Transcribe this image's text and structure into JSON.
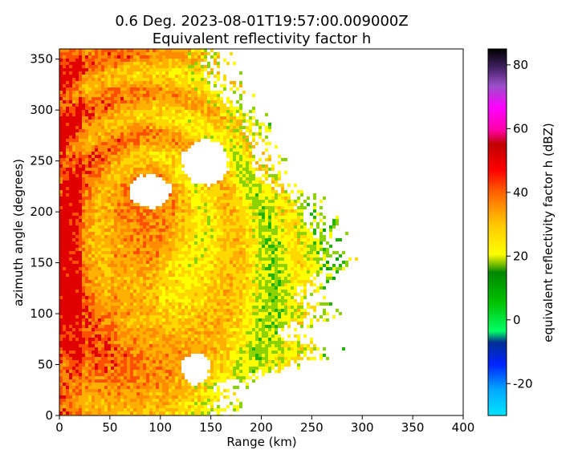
{
  "chart_data": {
    "type": "heatmap",
    "title_line1": "0.6 Deg. 2023-08-01T19:57:00.009000Z",
    "title_line2": "Equivalent reflectivity factor h",
    "xlabel": "Range (km)",
    "ylabel": "azimuth angle (degrees)",
    "xlim": [
      0,
      400
    ],
    "ylim": [
      0,
      360
    ],
    "xticks": [
      0,
      50,
      100,
      150,
      200,
      250,
      300,
      350,
      400
    ],
    "yticks": [
      0,
      50,
      100,
      150,
      200,
      250,
      300,
      350
    ],
    "colorbar": {
      "label": "equivalent reflectivity factor h (dBZ)",
      "range": [
        -30,
        85
      ],
      "ticks": [
        -20,
        0,
        20,
        40,
        60,
        80
      ]
    },
    "echo_extent": [
      {
        "azimuth": 0,
        "range_km": 165
      },
      {
        "azimuth": 30,
        "range_km": 170
      },
      {
        "azimuth": 50,
        "range_km": 240
      },
      {
        "azimuth": 65,
        "range_km": 270
      },
      {
        "azimuth": 80,
        "range_km": 230
      },
      {
        "azimuth": 100,
        "range_km": 265
      },
      {
        "azimuth": 120,
        "range_km": 250
      },
      {
        "azimuth": 145,
        "range_km": 280
      },
      {
        "azimuth": 170,
        "range_km": 275
      },
      {
        "azimuth": 195,
        "range_km": 260
      },
      {
        "azimuth": 215,
        "range_km": 245
      },
      {
        "azimuth": 235,
        "range_km": 215
      },
      {
        "azimuth": 260,
        "range_km": 205
      },
      {
        "azimuth": 290,
        "range_km": 200
      },
      {
        "azimuth": 320,
        "range_km": 170
      },
      {
        "azimuth": 345,
        "range_km": 160
      },
      {
        "azimuth": 360,
        "range_km": 160
      }
    ],
    "echo_gaps": [
      {
        "azimuth": [
          202,
          238
        ],
        "range_km": [
          68,
          112
        ]
      },
      {
        "azimuth": [
          225,
          272
        ],
        "range_km": [
          120,
          170
        ]
      },
      {
        "azimuth": [
          30,
          62
        ],
        "range_km": [
          120,
          150
        ]
      }
    ]
  }
}
